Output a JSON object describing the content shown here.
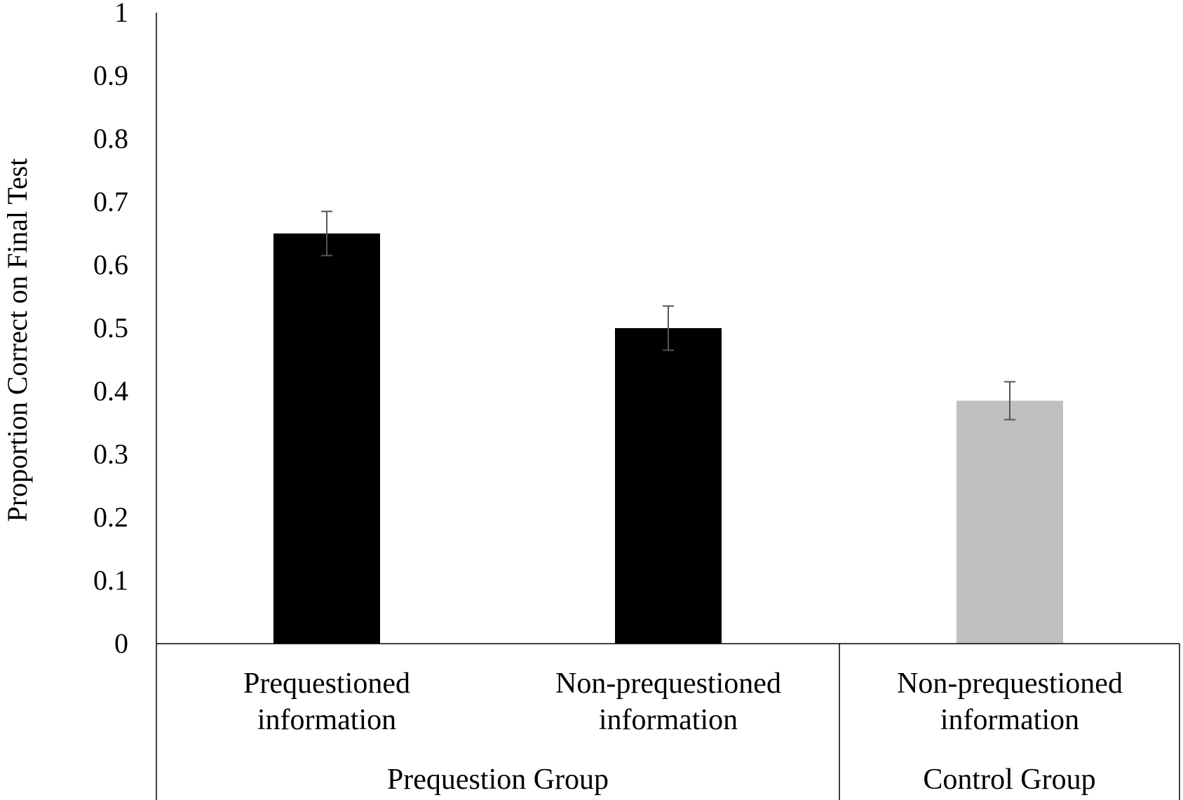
{
  "chart_data": {
    "type": "bar",
    "title": "",
    "ylabel": "Proportion Correct on Final Test",
    "xlabel": "",
    "ylim": [
      0,
      1
    ],
    "yticks": [
      "0",
      "0.1",
      "0.2",
      "0.3",
      "0.4",
      "0.5",
      "0.6",
      "0.7",
      "0.8",
      "0.9",
      "1"
    ],
    "grid": false,
    "legend": "none",
    "categories": [
      [
        "Prequestioned",
        "information"
      ],
      [
        "Non-prequestioned",
        "information"
      ],
      [
        "Non-prequestioned",
        "information"
      ]
    ],
    "groups": [
      {
        "label": "Prequestion Group",
        "categories": [
          0,
          1
        ]
      },
      {
        "label": "Control Group",
        "categories": [
          2
        ]
      }
    ],
    "values": [
      0.65,
      0.5,
      0.385
    ],
    "error": [
      0.035,
      0.035,
      0.03
    ],
    "colors": [
      "#000000",
      "#000000",
      "#bfbfbf"
    ]
  }
}
